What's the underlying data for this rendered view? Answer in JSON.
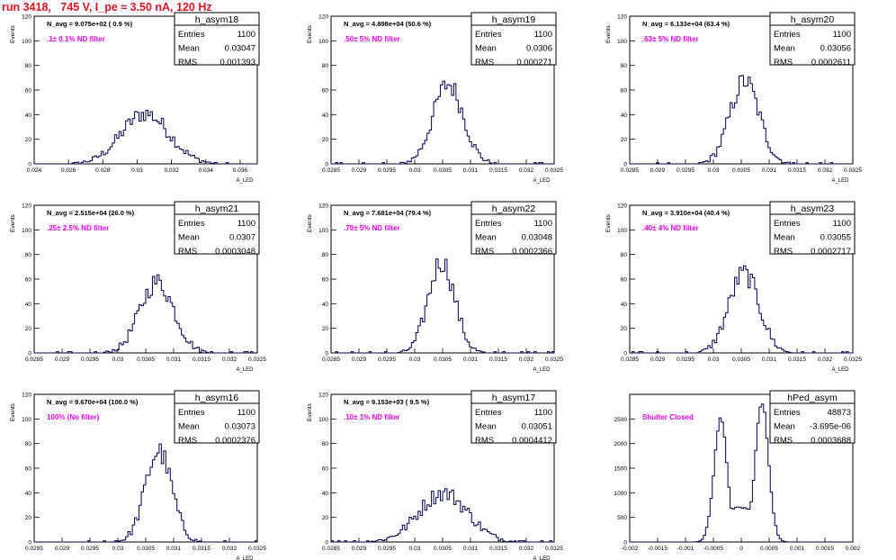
{
  "title": "run 3418,   745 V, I_pe ≈ 3.50 nA, 120 Hz",
  "chart_data": [
    {
      "type": "histogram",
      "name": "h_asym18",
      "ylabel": "Events",
      "xlabel": "A_LED",
      "xlim": [
        0.024,
        0.037
      ],
      "ylim": [
        0,
        120
      ],
      "xticks": [
        0.024,
        0.026,
        0.028,
        0.03,
        0.032,
        0.034,
        0.036
      ],
      "xtick_labels": [
        "0.024",
        "0.026",
        "0.028",
        "0.03",
        "0.032",
        "0.034",
        "0.036"
      ],
      "yticks": [
        0,
        20,
        40,
        60,
        80,
        100,
        120
      ],
      "nbins": 100,
      "dist": {
        "type": "gauss",
        "mean": 0.03047,
        "sigma": 0.001393
      },
      "stats": {
        "entries_label": "Entries",
        "entries": "1100",
        "mean_label": "Mean",
        "mean": "0.03047",
        "rms_label": "RMS",
        "rms": "0.001393"
      },
      "navg": "N_avg = 9.075e+02 ( 0.9 %)",
      "filter": ".1± 0.1% ND filter"
    },
    {
      "type": "histogram",
      "name": "h_asym19",
      "ylabel": "Events",
      "xlabel": "A_LED",
      "xlim": [
        0.0285,
        0.0325
      ],
      "ylim": [
        0,
        120
      ],
      "xticks": [
        0.0285,
        0.029,
        0.0295,
        0.03,
        0.0305,
        0.031,
        0.0315,
        0.032,
        0.0325
      ],
      "xtick_labels": [
        "0.0285",
        "0.029",
        "0.0295",
        "0.03",
        "0.0305",
        "0.031",
        "0.0315",
        "0.032",
        "0.0325"
      ],
      "yticks": [
        0,
        20,
        40,
        60,
        80,
        100,
        120
      ],
      "nbins": 100,
      "dist": {
        "type": "gauss",
        "mean": 0.0306,
        "sigma": 0.000271
      },
      "stats": {
        "entries_label": "Entries",
        "entries": "1100",
        "mean_label": "Mean",
        "mean": "0.0306",
        "rms_label": "RMS",
        "rms": "0.000271"
      },
      "navg": "N_avg = 4.898e+04 (50.6 %)",
      "filter": ".50± 5% ND filter"
    },
    {
      "type": "histogram",
      "name": "h_asym20",
      "ylabel": "Events",
      "xlabel": "A_LED",
      "xlim": [
        0.0285,
        0.0325
      ],
      "ylim": [
        0,
        120
      ],
      "xticks": [
        0.0285,
        0.029,
        0.0295,
        0.03,
        0.0305,
        0.031,
        0.0315,
        0.032,
        0.0325
      ],
      "xtick_labels": [
        "0.0285",
        "0.029",
        "0.0295",
        "0.03",
        "0.0305",
        "0.031",
        "0.0315",
        "0.032",
        "0.0325"
      ],
      "yticks": [
        0,
        20,
        40,
        60,
        80,
        100,
        120
      ],
      "nbins": 100,
      "dist": {
        "type": "gauss",
        "mean": 0.03056,
        "sigma": 0.0002611
      },
      "stats": {
        "entries_label": "Entries",
        "entries": "1100",
        "mean_label": "Mean",
        "mean": "0.03056",
        "rms_label": "RMS",
        "rms": "0.0002611"
      },
      "navg": "N_avg = 6.133e+04 (63.4 %)",
      "filter": ".63± 5% ND filter"
    },
    {
      "type": "histogram",
      "name": "h_asym21",
      "ylabel": "Events",
      "xlabel": "A_LED",
      "xlim": [
        0.0285,
        0.0325
      ],
      "ylim": [
        0,
        120
      ],
      "xticks": [
        0.0285,
        0.029,
        0.0295,
        0.03,
        0.0305,
        0.031,
        0.0315,
        0.032,
        0.0325
      ],
      "xtick_labels": [
        "0.0285",
        "0.029",
        "0.0295",
        "0.03",
        "0.0305",
        "0.031",
        "0.0315",
        "0.032",
        "0.0325"
      ],
      "yticks": [
        0,
        20,
        40,
        60,
        80,
        100,
        120
      ],
      "nbins": 100,
      "dist": {
        "type": "gauss",
        "mean": 0.0307,
        "sigma": 0.0003048
      },
      "stats": {
        "entries_label": "Entries",
        "entries": "1100",
        "mean_label": "Mean",
        "mean": "0.0307",
        "rms_label": "RMS",
        "rms": "0.0003048"
      },
      "navg": "N_avg = 2.515e+04 (26.0 %)",
      "filter": ".25± 2.5% ND filter"
    },
    {
      "type": "histogram",
      "name": "h_asym22",
      "ylabel": "Events",
      "xlabel": "A_LED",
      "xlim": [
        0.0285,
        0.0325
      ],
      "ylim": [
        0,
        120
      ],
      "xticks": [
        0.0285,
        0.029,
        0.0295,
        0.03,
        0.0305,
        0.031,
        0.0315,
        0.032,
        0.0325
      ],
      "xtick_labels": [
        "0.0285",
        "0.029",
        "0.0295",
        "0.03",
        "0.0305",
        "0.031",
        "0.0315",
        "0.032",
        "0.0325"
      ],
      "yticks": [
        0,
        20,
        40,
        60,
        80,
        100,
        120
      ],
      "nbins": 100,
      "dist": {
        "type": "gauss",
        "mean": 0.03048,
        "sigma": 0.0002366
      },
      "stats": {
        "entries_label": "Entries",
        "entries": "1100",
        "mean_label": "Mean",
        "mean": "0.03048",
        "rms_label": "RMS",
        "rms": "0.0002366"
      },
      "navg": "N_avg = 7.681e+04 (79.4 %)",
      "filter": ".79± 5% ND filter"
    },
    {
      "type": "histogram",
      "name": "h_asym23",
      "ylabel": "Events",
      "xlabel": "A_LED",
      "xlim": [
        0.0285,
        0.0325
      ],
      "ylim": [
        0,
        120
      ],
      "xticks": [
        0.0285,
        0.029,
        0.0295,
        0.03,
        0.0305,
        0.031,
        0.0315,
        0.032,
        0.0325
      ],
      "xtick_labels": [
        "0.0285",
        "0.029",
        "0.0295",
        "0.03",
        "0.0305",
        "0.031",
        "0.0315",
        "0.032",
        "0.0325"
      ],
      "yticks": [
        0,
        20,
        40,
        60,
        80,
        100,
        120
      ],
      "nbins": 100,
      "dist": {
        "type": "gauss",
        "mean": 0.03055,
        "sigma": 0.0002717
      },
      "stats": {
        "entries_label": "Entries",
        "entries": "1100",
        "mean_label": "Mean",
        "mean": "0.03055",
        "rms_label": "RMS",
        "rms": "0.0002717"
      },
      "navg": "N_avg = 3.910e+04 (40.4 %)",
      "filter": ".40± 4% ND filter"
    },
    {
      "type": "histogram",
      "name": "h_asym16",
      "ylabel": "Events",
      "xlabel": "A_LED",
      "xlim": [
        0.0285,
        0.0325
      ],
      "ylim": [
        0,
        120
      ],
      "xticks": [
        0.0285,
        0.029,
        0.0295,
        0.03,
        0.0305,
        0.031,
        0.0315,
        0.032,
        0.0325
      ],
      "xtick_labels": [
        "0.0285",
        "0.029",
        "0.0295",
        "0.03",
        "0.0305",
        "0.031",
        "0.0315",
        "0.032",
        "0.0325"
      ],
      "yticks": [
        0,
        20,
        40,
        60,
        80,
        100,
        120
      ],
      "nbins": 100,
      "dist": {
        "type": "gauss",
        "mean": 0.03073,
        "sigma": 0.0002376
      },
      "stats": {
        "entries_label": "Entries",
        "entries": "1100",
        "mean_label": "Mean",
        "mean": "0.03073",
        "rms_label": "RMS",
        "rms": "0.0002376"
      },
      "navg": "N_avg = 9.670e+04 (100.0 %)",
      "filter": "100% (No filter)"
    },
    {
      "type": "histogram",
      "name": "h_asym17",
      "ylabel": "Events",
      "xlabel": "A_LED",
      "xlim": [
        0.0285,
        0.0325
      ],
      "ylim": [
        0,
        120
      ],
      "xticks": [
        0.0285,
        0.029,
        0.0295,
        0.03,
        0.0305,
        0.031,
        0.0315,
        0.032,
        0.0325
      ],
      "xtick_labels": [
        "0.0285",
        "0.029",
        "0.0295",
        "0.03",
        "0.0305",
        "0.031",
        "0.0315",
        "0.032",
        "0.0325"
      ],
      "yticks": [
        0,
        20,
        40,
        60,
        80,
        100,
        120
      ],
      "nbins": 100,
      "dist": {
        "type": "gauss",
        "mean": 0.03051,
        "sigma": 0.0004412
      },
      "stats": {
        "entries_label": "Entries",
        "entries": "1100",
        "mean_label": "Mean",
        "mean": "0.03051",
        "rms_label": "RMS",
        "rms": "0.0004412"
      },
      "navg": "N_avg = 9.153e+03 ( 9.5 %)",
      "filter": ".10± 1% ND filter"
    },
    {
      "type": "histogram",
      "name": "hPed_asym",
      "ylabel": "",
      "xlabel": "",
      "xlim": [
        -0.002,
        0.002
      ],
      "ylim": [
        0,
        3000
      ],
      "xticks": [
        -0.002,
        -0.0015,
        -0.001,
        -0.0005,
        0,
        0.0005,
        0.001,
        0.0015,
        0.002
      ],
      "xtick_labels": [
        "-0.002",
        "-0.0015",
        "-0.001",
        "-0.0005",
        "0",
        "0.0005",
        "0.001",
        "0.0015",
        "0.002"
      ],
      "yticks": [
        0,
        500,
        1000,
        1500,
        2000,
        2500
      ],
      "nbins": 100,
      "dist": {
        "type": "double",
        "peaks": [
          -0.00037,
          0.00037
        ],
        "sigma": 0.00012,
        "peak_heights": [
          2480,
          2820
        ],
        "valley": 700
      },
      "stats": {
        "entries_label": "Entries",
        "entries": "48873",
        "mean_label": "Mean",
        "mean": "-3.695e-06",
        "rms_label": "RMS",
        "rms": "0.0003688"
      },
      "navg": "",
      "filter": "Shutter Closed"
    }
  ]
}
